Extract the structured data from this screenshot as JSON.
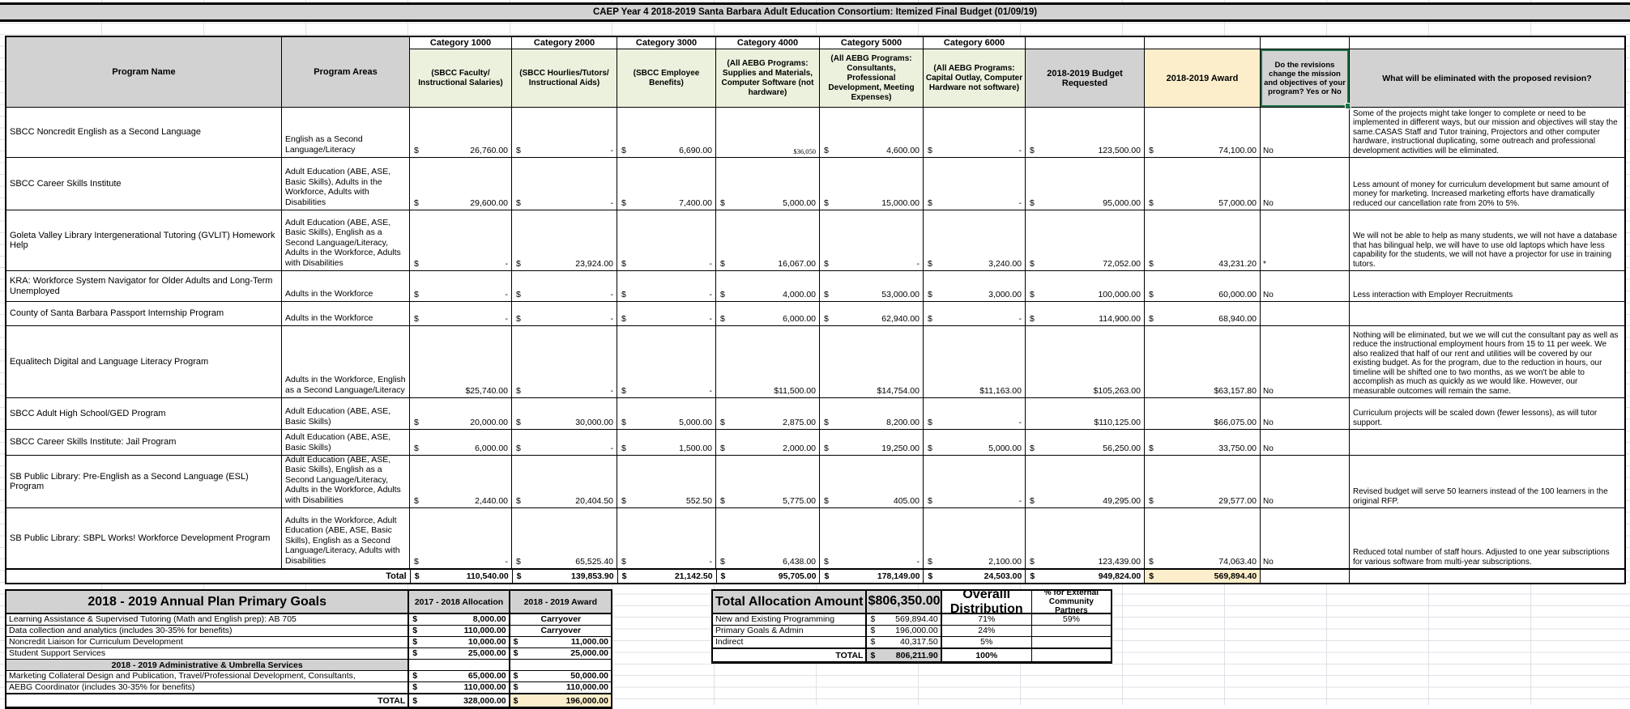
{
  "title": "CAEP Year 4  2018-2019 Santa Barbara Adult Education Consortium:  Itemized Final Budget (01/09/19)",
  "main_table": {
    "columns": {
      "program_name": "Program Name",
      "program_areas": "Program Areas",
      "categories": [
        {
          "label": "Category 1000",
          "desc": "(SBCC Faculty/ Instructional Salaries)"
        },
        {
          "label": "Category 2000",
          "desc": "(SBCC Hourlies/Tutors/ Instructional Aids)"
        },
        {
          "label": "Category 3000",
          "desc": "(SBCC Employee Benefits)"
        },
        {
          "label": "Category 4000",
          "desc": "(All AEBG Programs: Supplies and Materials, Computer Software (not hardware)"
        },
        {
          "label": "Category 5000",
          "desc": "(All AEBG Programs: Consultants, Professional Development, Meeting Expenses)"
        },
        {
          "label": "Category 6000",
          "desc": "(All AEBG Programs: Capital Outlay, Computer Hardware not software)"
        }
      ],
      "requested": "2018-2019    Budget Requested",
      "award": "2018-2019 Award",
      "revisions": "Do the revisions change the mission and objectives of your program? Yes or No",
      "eliminated": "What will be eliminated with the proposed revision?"
    },
    "rows": [
      {
        "name": "SBCC Noncredit English as a Second Language",
        "areas": "English as a Second Language/Literacy",
        "values": [
          "$|26,760.00",
          "$|-",
          "$|6,690.00",
          "~$36,050",
          "$|4,600.00",
          "$|-",
          "$|123,500.00",
          "$|74,100.00"
        ],
        "revisions": "No",
        "note": "Some of the projects might take longer to complete or need to be implemented in different ways, but our mission and objectives will stay the same.CASAS Staff and Tutor training, Projectors and other computer hardware, instructional duplicating, some outreach and professional development activities will be eliminated."
      },
      {
        "name": "SBCC Career Skills Institute",
        "areas": "Adult Education (ABE, ASE, Basic Skills), Adults in the Workforce, Adults with Disabilities",
        "values": [
          "$|29,600.00",
          "$|-",
          "$|7,400.00",
          "$|5,000.00",
          "$|15,000.00",
          "$|-",
          "$|95,000.00",
          "$|57,000.00"
        ],
        "revisions": "No",
        "note": "Less amount of money for curriculum development but same amount of money for marketing. Increased marketing efforts have dramatically reduced our cancellation rate from 20% to 5%."
      },
      {
        "name": "Goleta Valley Library Intergenerational Tutoring (GVLIT) Homework Help",
        "areas": "Adult Education (ABE, ASE, Basic Skills), English as a Second Language/Literacy, Adults in the Workforce, Adults with Disabilities",
        "values": [
          "$|-",
          "$|23,924.00",
          "$|-",
          "$|16,067.00",
          "$|-",
          "$|3,240.00",
          "$|72,052.00",
          "$|43,231.20"
        ],
        "revisions": "*",
        "note": "We will not be able to help as many students, we will not have a database that has bilingual help, we will have to use old laptops which have less capability for the students, we will not have a projector for use in training tutors."
      },
      {
        "name": "KRA: Workforce System Navigator for Older Adults and Long-Term Unemployed",
        "areas": "Adults in the Workforce",
        "values": [
          "$|-",
          "$|-",
          "$|-",
          "$|4,000.00",
          "$|53,000.00",
          "$|3,000.00",
          "$|100,000.00",
          "$|60,000.00"
        ],
        "revisions": "No",
        "note": "Less interaction with Employer Recruitments"
      },
      {
        "name": "County of Santa Barbara Passport Internship Program",
        "areas": "Adults in the Workforce",
        "values": [
          "$|-",
          "$|-",
          "$|-",
          "$|6,000.00",
          "$|62,940.00",
          "$|-",
          "$|114,900.00",
          "$|68,940.00"
        ],
        "revisions": "",
        "note": ""
      },
      {
        "name": "Equalitech Digital and Language Literacy Program",
        "areas": "Adults in the Workforce, English as a Second Language/Literacy",
        "values": [
          "$25,740.00",
          "$|-",
          "$|-",
          "$11,500.00",
          "$14,754.00",
          "$11,163.00",
          "$105,263.00",
          "$63,157.80"
        ],
        "revisions": "No",
        "note": "Nothing will be eliminated, but we we will cut the consultant pay as well as reduce the instructional employment hours from 15 to 11 per week. We also realized that half of our rent and utilities will be covered by our existing budget. As for the program, due to the reduction in hours, our timeline will be shifted one to two months, as we won't be able to accomplish as much as quickly as we would like. However, our measurable outcomes will remain the same."
      },
      {
        "name": "SBCC Adult High School/GED Program",
        "areas": "Adult Education (ABE, ASE, Basic Skills)",
        "values": [
          "$|20,000.00",
          "$|30,000.00",
          "$|5,000.00",
          "$|2,875.00",
          "$|8,200.00",
          "$|-",
          "$110,125.00",
          "$66,075.00"
        ],
        "revisions": "No",
        "note": "Curriculum projects will be scaled down (fewer lessons), as will tutor support."
      },
      {
        "name": "SBCC Career Skills Institute: Jail Program",
        "areas": "Adult Education (ABE, ASE, Basic Skills)",
        "values": [
          "$|6,000.00",
          "$|-",
          "$|1,500.00",
          "$|2,000.00",
          "$|19,250.00",
          "$|5,000.00",
          "$|56,250.00",
          "$|33,750.00"
        ],
        "revisions": "No",
        "note": ""
      },
      {
        "name": "SB Public Library: Pre-English as a Second Language (ESL) Program",
        "areas": "Adult Education (ABE, ASE, Basic Skills), English as a Second Language/Literacy, Adults in the Workforce, Adults with Disabilities",
        "values": [
          "$|2,440.00",
          "$|20,404.50",
          "$|552.50",
          "$|5,775.00",
          "$|405.00",
          "$|-",
          "$|49,295.00",
          "$|29,577.00"
        ],
        "revisions": "No",
        "note": "Revised budget will serve 50 learners instead of the 100 learners in the original RFP."
      },
      {
        "name": "SB Public Library: SBPL Works! Workforce Development Program",
        "areas": "Adults in the Workforce, Adult Education (ABE, ASE, Basic Skills), English as a Second Language/Literacy, Adults with Disabilities",
        "values": [
          "$|-",
          "$|65,525.40",
          "$|-",
          "$|6,438.00",
          "$|-",
          "$|2,100.00",
          "$|123,439.00",
          "$|74,063.40"
        ],
        "revisions": "No",
        "note": "Reduced total number of staff hours. Adjusted to one year subscriptions for various software from multi-year subscriptions."
      }
    ],
    "total": {
      "label": "Total",
      "values": [
        "$|110,540.00",
        "$|139,853.90",
        "$|21,142.50",
        "$|95,705.00",
        "$|178,149.00",
        "$|24,503.00",
        "$|949,824.00",
        "$|569,894.40"
      ]
    }
  },
  "annual_plan": {
    "header": {
      "goals": "2018 - 2019 Annual Plan Primary Goals",
      "alloc": "2017 - 2018 Allocation",
      "award": "2018 - 2019 Award"
    },
    "rows": [
      {
        "label": "Learning Assistance & Supervised Tutoring (Math and English prep): AB 705",
        "alloc": "$|8,000.00",
        "award": "Carryover"
      },
      {
        "label": "Data collection and analytics  (includes 30-35% for benefits)",
        "alloc": "$|110,000.00",
        "award": "Carryover"
      },
      {
        "label": "Noncredit Liaison for Curriculum Development",
        "alloc": "$|10,000.00",
        "award": "$|11,000.00"
      },
      {
        "label": "Student Support Services",
        "alloc": "$|25,000.00",
        "award": "$|25,000.00"
      },
      {
        "section": "2018 - 2019 Administrative & Umbrella Services"
      },
      {
        "label": "Marketing Collateral Design and Publication, Travel/Professional Development, Consultants,",
        "alloc": "$|65,000.00",
        "award": "$|50,000.00"
      },
      {
        "label": "AEBG Coordinator (includes 30-35% for benefits)",
        "alloc": "$|110,000.00",
        "award": "$|110,000.00"
      },
      {
        "total": "TOTAL",
        "alloc": "$|328,000.00",
        "award": "$|196,000.00"
      }
    ]
  },
  "allocation": {
    "header": {
      "label": "Total Allocation Amount",
      "amount": "$|806,350.00",
      "dist": "Overalll Distribution",
      "external": "% for External Community Partners"
    },
    "rows": [
      {
        "label": "New and Existing Programming",
        "amount": "$|569,894.40",
        "dist": "71%",
        "external": "59%"
      },
      {
        "label": "Primary Goals & Admin",
        "amount": "$|196,000.00",
        "dist": "24%",
        "external": ""
      },
      {
        "label": "Indirect",
        "amount": "$|40,317.50",
        "dist": "5%",
        "external": ""
      },
      {
        "label": "TOTAL",
        "amount": "$|806,211.90",
        "dist": "100%",
        "external": "",
        "is_total": true
      }
    ]
  },
  "colors": {
    "header_gray": "#d2d2d2",
    "category_green": "#ebf1dd",
    "award_yellow": "#fdeecb",
    "selection_green": "#1e7145"
  }
}
